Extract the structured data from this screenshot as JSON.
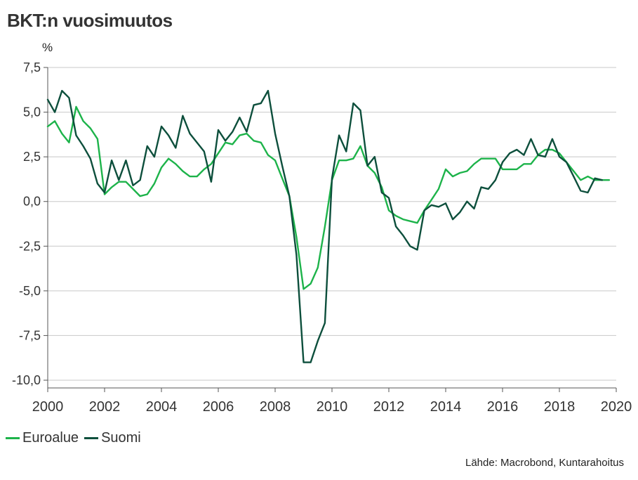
{
  "chart_data": {
    "type": "line",
    "title": "BKT:n vuosimuutos",
    "ylabel": "%",
    "ylim": [
      -10.0,
      7.5
    ],
    "yticks": [
      -10.0,
      -7.5,
      -5.0,
      -2.5,
      0.0,
      2.5,
      5.0,
      7.5
    ],
    "ytick_labels": [
      "-10,0",
      "-7,5",
      "-5,0",
      "-2,5",
      "0,0",
      "2,5",
      "5,0",
      "7,5"
    ],
    "xlim": [
      2000,
      2020
    ],
    "xticks": [
      2000,
      2002,
      2004,
      2006,
      2008,
      2010,
      2012,
      2014,
      2016,
      2018,
      2020
    ],
    "xtick_labels": [
      "2000",
      "2002",
      "2004",
      "2006",
      "2008",
      "2010",
      "2012",
      "2014",
      "2016",
      "2018",
      "2020"
    ],
    "grid": true,
    "legend_position": "bottom-left",
    "source": "Lähde: Macrobond, Kuntarahoitus",
    "series": [
      {
        "name": "Euroalue",
        "color": "#1db34a",
        "x": [
          2000.0,
          2000.25,
          2000.5,
          2000.75,
          2001.0,
          2001.25,
          2001.5,
          2001.75,
          2002.0,
          2002.25,
          2002.5,
          2002.75,
          2003.0,
          2003.25,
          2003.5,
          2003.75,
          2004.0,
          2004.25,
          2004.5,
          2004.75,
          2005.0,
          2005.25,
          2005.5,
          2005.75,
          2006.0,
          2006.25,
          2006.5,
          2006.75,
          2007.0,
          2007.25,
          2007.5,
          2007.75,
          2008.0,
          2008.25,
          2008.5,
          2008.75,
          2009.0,
          2009.25,
          2009.5,
          2009.75,
          2010.0,
          2010.25,
          2010.5,
          2010.75,
          2011.0,
          2011.25,
          2011.5,
          2011.75,
          2012.0,
          2012.25,
          2012.5,
          2012.75,
          2013.0,
          2013.25,
          2013.5,
          2013.75,
          2014.0,
          2014.25,
          2014.5,
          2014.75,
          2015.0,
          2015.25,
          2015.5,
          2015.75,
          2016.0,
          2016.25,
          2016.5,
          2016.75,
          2017.0,
          2017.25,
          2017.5,
          2017.75,
          2018.0,
          2018.25,
          2018.5,
          2018.75,
          2019.0,
          2019.25,
          2019.5,
          2019.75
        ],
        "values": [
          4.2,
          4.5,
          3.8,
          3.3,
          5.3,
          4.5,
          4.1,
          3.5,
          0.4,
          0.8,
          1.1,
          1.1,
          0.7,
          0.3,
          0.4,
          1.0,
          1.9,
          2.4,
          2.1,
          1.7,
          1.4,
          1.4,
          1.8,
          2.1,
          2.7,
          3.3,
          3.2,
          3.7,
          3.8,
          3.4,
          3.3,
          2.6,
          2.3,
          1.3,
          0.3,
          -2.0,
          -4.9,
          -4.6,
          -3.7,
          -1.4,
          1.2,
          2.3,
          2.3,
          2.4,
          3.1,
          2.0,
          1.6,
          0.8,
          -0.5,
          -0.8,
          -1.0,
          -1.1,
          -1.2,
          -0.5,
          0.1,
          0.7,
          1.8,
          1.4,
          1.6,
          1.7,
          2.1,
          2.4,
          2.4,
          2.4,
          1.8,
          1.8,
          1.8,
          2.1,
          2.1,
          2.6,
          2.9,
          2.9,
          2.7,
          2.2,
          1.7,
          1.2,
          1.4,
          1.2,
          1.2,
          1.2
        ]
      },
      {
        "name": "Suomi",
        "color": "#0d4f3c",
        "x": [
          2000.0,
          2000.25,
          2000.5,
          2000.75,
          2001.0,
          2001.25,
          2001.5,
          2001.75,
          2002.0,
          2002.25,
          2002.5,
          2002.75,
          2003.0,
          2003.25,
          2003.5,
          2003.75,
          2004.0,
          2004.25,
          2004.5,
          2004.75,
          2005.0,
          2005.25,
          2005.5,
          2005.75,
          2006.0,
          2006.25,
          2006.5,
          2006.75,
          2007.0,
          2007.25,
          2007.5,
          2007.75,
          2008.0,
          2008.25,
          2008.5,
          2008.75,
          2009.0,
          2009.25,
          2009.5,
          2009.75,
          2010.0,
          2010.25,
          2010.5,
          2010.75,
          2011.0,
          2011.25,
          2011.5,
          2011.75,
          2012.0,
          2012.25,
          2012.5,
          2012.75,
          2013.0,
          2013.25,
          2013.5,
          2013.75,
          2014.0,
          2014.25,
          2014.5,
          2014.75,
          2015.0,
          2015.25,
          2015.5,
          2015.75,
          2016.0,
          2016.25,
          2016.5,
          2016.75,
          2017.0,
          2017.25,
          2017.5,
          2017.75,
          2018.0,
          2018.25,
          2018.5,
          2018.75,
          2019.0,
          2019.25,
          2019.5
        ],
        "values": [
          5.7,
          5.0,
          6.2,
          5.8,
          3.7,
          3.1,
          2.4,
          1.0,
          0.5,
          2.3,
          1.2,
          2.3,
          0.9,
          1.2,
          3.1,
          2.5,
          4.2,
          3.7,
          3.0,
          4.8,
          3.8,
          3.3,
          2.8,
          1.1,
          4.0,
          3.4,
          3.9,
          4.7,
          3.9,
          5.4,
          5.5,
          6.2,
          3.8,
          2.0,
          0.3,
          -3.0,
          -9.0,
          -9.0,
          -7.8,
          -6.8,
          1.3,
          3.7,
          2.8,
          5.5,
          5.1,
          2.0,
          2.5,
          0.5,
          0.2,
          -1.4,
          -1.9,
          -2.5,
          -2.7,
          -0.5,
          -0.2,
          -0.3,
          -0.1,
          -1.0,
          -0.6,
          0.0,
          -0.4,
          0.8,
          0.7,
          1.2,
          2.2,
          2.7,
          2.9,
          2.6,
          3.5,
          2.6,
          2.5,
          3.5,
          2.5,
          2.2,
          1.4,
          0.6,
          0.5,
          1.3,
          1.2
        ]
      }
    ]
  }
}
